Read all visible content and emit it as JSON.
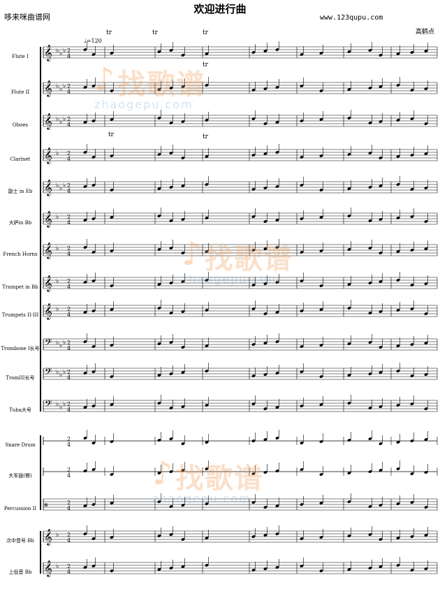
{
  "header": {
    "title": "欢迎进行曲",
    "site_left": "哆来咪曲谱网",
    "site_right": "www.123qupu.com",
    "composer": "高鹤点",
    "tempo": "♩=120"
  },
  "instruments": [
    {
      "label": "Flute I"
    },
    {
      "label": "Flute II"
    },
    {
      "label": "Oboes"
    },
    {
      "label": "Clarinet"
    },
    {
      "label": "副士 in Eb"
    },
    {
      "label": "大萨in Bb"
    },
    {
      "label": "French Horns"
    },
    {
      "label": "Trumpet in Bb"
    },
    {
      "label": "Trumpets II-III"
    },
    {
      "label": "Trombone I长号"
    },
    {
      "label": "TromIII长号"
    },
    {
      "label": "Tuba大号"
    },
    {
      "label": "Snare Drum"
    },
    {
      "label": "大军鼓(镲)"
    },
    {
      "label": "Percussion II"
    },
    {
      "label": "次中音号 Bb"
    },
    {
      "label": "上低音 Bb"
    }
  ],
  "watermark": {
    "text": "找歌谱",
    "domain": "zhaogepu.com"
  },
  "icons": {
    "treble": "treble-clef-icon",
    "bass": "bass-clef-icon",
    "perc": "percussion-clef-icon"
  }
}
